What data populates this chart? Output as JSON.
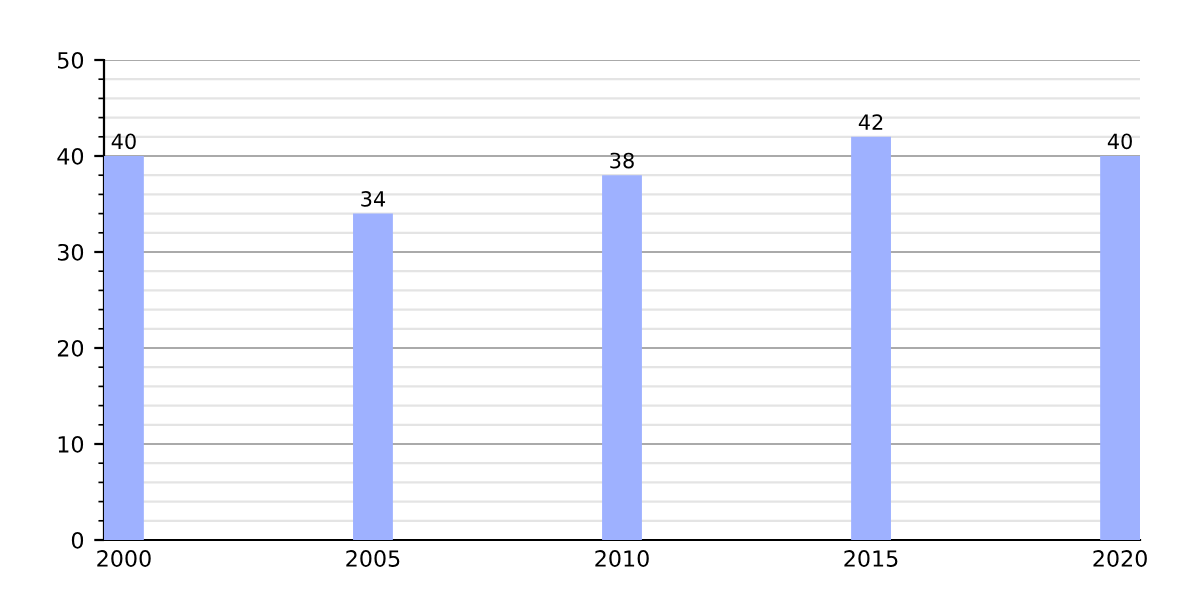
{
  "chart_data": {
    "type": "bar",
    "categories": [
      "2000",
      "2005",
      "2010",
      "2015",
      "2020"
    ],
    "values": [
      40,
      34,
      38,
      42,
      40
    ],
    "color": "#9eb1ff",
    "ylim": [
      0,
      50
    ],
    "yticks": [
      0,
      10,
      20,
      30,
      40,
      50
    ],
    "grid": "y",
    "data_labels": true
  }
}
